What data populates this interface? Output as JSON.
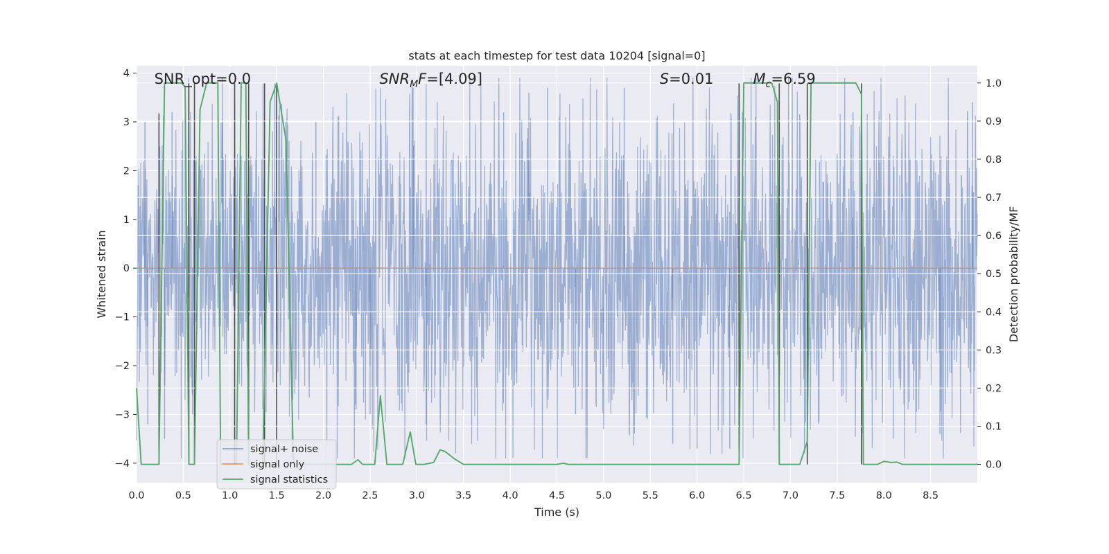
{
  "chart_data": {
    "type": "line",
    "title": "stats at each timestep for test data 10204 [signal=0]",
    "xlabel": "Time (s)",
    "ylabel": "Whitened strain",
    "y2label": "Detection probability/MF",
    "xlim": [
      0.0,
      9.0
    ],
    "ylim": [
      -4.4,
      4.15
    ],
    "y2lim": [
      -0.048,
      1.045
    ],
    "xticks": [
      "0.0",
      "0.5",
      "1.0",
      "1.5",
      "2.0",
      "2.5",
      "3.0",
      "3.5",
      "4.0",
      "4.5",
      "5.0",
      "5.5",
      "6.0",
      "6.5",
      "7.0",
      "7.5",
      "8.0",
      "8.5"
    ],
    "xtick_values": [
      0,
      0.5,
      1,
      1.5,
      2,
      2.5,
      3,
      3.5,
      4,
      4.5,
      5,
      5.5,
      6,
      6.5,
      7,
      7.5,
      8,
      8.5
    ],
    "yticks": [
      "−4",
      "−3",
      "−2",
      "−1",
      "0",
      "1",
      "2",
      "3",
      "4"
    ],
    "ytick_values": [
      -4,
      -3,
      -2,
      -1,
      0,
      1,
      2,
      3,
      4
    ],
    "y2ticks": [
      "0.0",
      "0.1",
      "0.2",
      "0.3",
      "0.4",
      "0.5",
      "0.6",
      "0.7",
      "0.8",
      "0.9",
      "1.0"
    ],
    "y2tick_values": [
      0,
      0.1,
      0.2,
      0.3,
      0.4,
      0.5,
      0.6,
      0.7,
      0.8,
      0.9,
      1.0
    ],
    "grid": true,
    "legend_position": "lower-left",
    "annotations": [
      {
        "parts": [
          {
            "t": "SNR_opt=0.0",
            "i": false
          }
        ],
        "x": 0.19
      },
      {
        "parts": [
          {
            "t": "SNR",
            "i": true
          },
          {
            "t": "M",
            "i": true,
            "sub": true
          },
          {
            "t": "F",
            "i": true
          },
          {
            "t": "=[4.09]",
            "i": false
          }
        ],
        "x": 2.6
      },
      {
        "parts": [
          {
            "t": "S",
            "i": true
          },
          {
            "t": "=0.01",
            "i": false
          }
        ],
        "x": 5.6
      },
      {
        "parts": [
          {
            "t": "M",
            "i": true
          },
          {
            "t": "c",
            "i": true,
            "sub": true
          },
          {
            "t": "=6.59",
            "i": false
          }
        ],
        "x": 6.6
      }
    ],
    "series": [
      {
        "name": "signal+ noise",
        "color": "#4c72b0",
        "kind": "noise",
        "description_envelope_upper": [
          [
            0,
            2.2
          ],
          [
            0.5,
            2.6
          ],
          [
            1.0,
            2.5
          ],
          [
            1.5,
            2.8
          ],
          [
            2.0,
            2.6
          ],
          [
            2.5,
            2.7
          ],
          [
            3.0,
            2.9
          ],
          [
            3.5,
            2.5
          ],
          [
            4.0,
            2.6
          ],
          [
            4.5,
            2.5
          ],
          [
            5.0,
            2.7
          ],
          [
            5.5,
            2.7
          ],
          [
            6.0,
            2.6
          ],
          [
            6.5,
            2.5
          ],
          [
            7.0,
            2.6
          ],
          [
            7.5,
            2.6
          ],
          [
            8.0,
            2.6
          ],
          [
            8.5,
            2.7
          ],
          [
            9.0,
            2.7
          ]
        ],
        "peaks": [
          [
            0.09,
            3.0
          ],
          [
            0.38,
            3.2
          ],
          [
            0.52,
            3.1
          ],
          [
            0.92,
            3.0
          ],
          [
            1.48,
            3.8
          ],
          [
            1.92,
            3.0
          ],
          [
            2.96,
            3.7
          ],
          [
            3.93,
            3.2
          ],
          [
            4.2,
            3.6
          ],
          [
            4.4,
            3.7
          ],
          [
            5.22,
            3.7
          ],
          [
            6.45,
            3.8
          ],
          [
            7.67,
            3.2
          ],
          [
            8.95,
            3.4
          ],
          [
            0.12,
            -3.2
          ],
          [
            0.3,
            -3.5
          ],
          [
            0.6,
            -3.0
          ],
          [
            2.5,
            -3.0
          ],
          [
            3.1,
            -3.2
          ],
          [
            5.0,
            -3.3
          ],
          [
            5.74,
            -3.6
          ],
          [
            6.0,
            -3.7
          ],
          [
            6.35,
            -3.7
          ],
          [
            7.15,
            -3.8
          ],
          [
            8.1,
            -3.5
          ],
          [
            8.6,
            -3.4
          ],
          [
            2.35,
            -2.9
          ],
          [
            4.7,
            -3.0
          ]
        ]
      },
      {
        "name": "signal only",
        "color": "#dd8452",
        "values": [
          [
            0.0,
            0.0
          ],
          [
            9.0,
            0.0
          ]
        ]
      },
      {
        "name": "signal statistics",
        "color": "#55a868",
        "axis": "right",
        "values": [
          [
            0.0,
            0.2
          ],
          [
            0.05,
            0.0
          ],
          [
            0.15,
            0.0
          ],
          [
            0.24,
            0.0
          ],
          [
            0.3,
            1.0
          ],
          [
            0.48,
            1.0
          ],
          [
            0.52,
            0.99
          ],
          [
            0.56,
            0.0
          ],
          [
            0.62,
            0.0
          ],
          [
            0.68,
            0.93
          ],
          [
            0.75,
            1.0
          ],
          [
            0.87,
            1.0
          ],
          [
            0.9,
            0.0
          ],
          [
            1.0,
            0.0
          ],
          [
            1.07,
            0.0
          ],
          [
            1.12,
            1.0
          ],
          [
            1.17,
            1.0
          ],
          [
            1.2,
            0.0
          ],
          [
            1.35,
            0.0
          ],
          [
            1.43,
            0.95
          ],
          [
            1.5,
            1.0
          ],
          [
            1.6,
            0.85
          ],
          [
            1.68,
            0.0
          ],
          [
            2.2,
            0.0
          ],
          [
            2.3,
            0.0
          ],
          [
            2.37,
            0.012
          ],
          [
            2.42,
            0.0
          ],
          [
            2.55,
            0.0
          ],
          [
            2.61,
            0.18
          ],
          [
            2.68,
            0.0
          ],
          [
            2.72,
            0.0
          ],
          [
            2.85,
            0.0
          ],
          [
            2.93,
            0.085
          ],
          [
            2.99,
            0.0
          ],
          [
            3.08,
            0.0
          ],
          [
            3.18,
            0.005
          ],
          [
            3.25,
            0.038
          ],
          [
            3.3,
            0.034
          ],
          [
            3.4,
            0.015
          ],
          [
            3.5,
            0.0
          ],
          [
            4.0,
            0.0
          ],
          [
            4.5,
            0.0
          ],
          [
            4.57,
            0.003
          ],
          [
            4.62,
            0.0
          ],
          [
            5.0,
            0.0
          ],
          [
            6.0,
            0.0
          ],
          [
            6.45,
            0.0
          ],
          [
            6.5,
            1.0
          ],
          [
            6.8,
            1.0
          ],
          [
            6.86,
            0.95
          ],
          [
            6.88,
            0.0
          ],
          [
            6.95,
            0.0
          ],
          [
            7.1,
            0.0
          ],
          [
            7.18,
            0.06
          ],
          [
            7.22,
            1.0
          ],
          [
            7.7,
            1.0
          ],
          [
            7.76,
            0.97
          ],
          [
            7.78,
            0.0
          ],
          [
            7.93,
            0.0
          ],
          [
            8.0,
            0.008
          ],
          [
            8.08,
            0.005
          ],
          [
            8.14,
            0.006
          ],
          [
            8.2,
            0.0
          ],
          [
            8.5,
            0.0
          ],
          [
            9.0,
            0.0
          ]
        ]
      }
    ],
    "vertical_markers": {
      "color": "#4d4d4d",
      "lines": [
        [
          0.24,
          -0.0,
          0.92
        ],
        [
          0.56,
          0.0,
          1.0
        ],
        [
          0.62,
          0.0,
          1.0
        ],
        [
          1.05,
          0.0,
          1.0
        ],
        [
          1.2,
          0.0,
          1.0
        ],
        [
          1.37,
          0.0,
          1.0
        ],
        [
          1.5,
          0.0,
          1.0
        ],
        [
          6.45,
          0.0,
          1.0
        ],
        [
          6.88,
          0.0,
          1.0
        ],
        [
          7.18,
          0.0,
          1.0
        ],
        [
          7.76,
          0.0,
          1.0
        ]
      ]
    },
    "right_axis_grid_lines": [
      0.1,
      0.2,
      0.3,
      0.4,
      0.5,
      0.6,
      0.7,
      0.8,
      0.9,
      1.0
    ]
  }
}
